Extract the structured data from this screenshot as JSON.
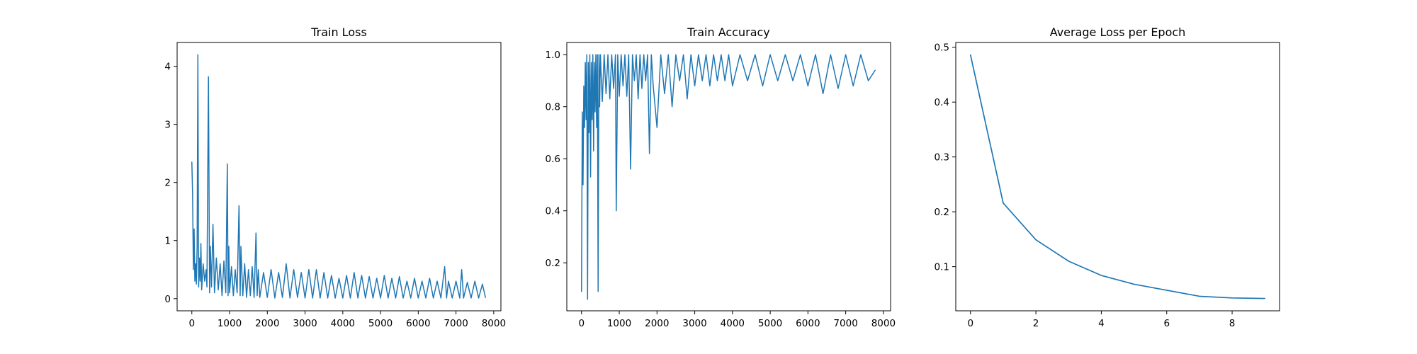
{
  "chart_data": [
    {
      "type": "line",
      "title": "Train Loss",
      "xlabel": "",
      "ylabel": "",
      "xlim": [
        -390,
        8190
      ],
      "ylim": [
        -0.21,
        4.41
      ],
      "xticks": [
        0,
        1000,
        2000,
        3000,
        4000,
        5000,
        6000,
        7000,
        8000
      ],
      "yticks": [
        0,
        1,
        2,
        3,
        4
      ],
      "grid": false,
      "series": [
        {
          "color": "#1f77b4",
          "x": [
            0,
            20,
            40,
            60,
            80,
            100,
            120,
            140,
            160,
            180,
            200,
            220,
            240,
            260,
            300,
            340,
            380,
            400,
            440,
            470,
            490,
            520,
            560,
            600,
            650,
            700,
            750,
            800,
            850,
            900,
            940,
            960,
            980,
            1000,
            1050,
            1100,
            1150,
            1200,
            1250,
            1280,
            1300,
            1350,
            1400,
            1450,
            1500,
            1550,
            1600,
            1650,
            1700,
            1730,
            1760,
            1800,
            1900,
            2000,
            2100,
            2200,
            2300,
            2400,
            2500,
            2600,
            2700,
            2800,
            2900,
            3000,
            3100,
            3200,
            3300,
            3400,
            3500,
            3600,
            3700,
            3800,
            3900,
            4000,
            4100,
            4200,
            4300,
            4400,
            4500,
            4600,
            4700,
            4800,
            4900,
            5000,
            5100,
            5200,
            5300,
            5400,
            5500,
            5600,
            5700,
            5800,
            5900,
            6000,
            6100,
            6200,
            6300,
            6400,
            6500,
            6600,
            6700,
            6750,
            6800,
            6900,
            7000,
            7100,
            7150,
            7200,
            7300,
            7400,
            7500,
            7600,
            7700,
            7780
          ],
          "values": [
            2.35,
            1.8,
            0.5,
            1.2,
            0.3,
            0.6,
            0.25,
            0.9,
            4.2,
            0.2,
            0.7,
            0.3,
            0.95,
            0.15,
            0.6,
            0.3,
            0.5,
            0.2,
            3.82,
            0.1,
            0.9,
            0.2,
            1.28,
            0.1,
            0.7,
            0.15,
            0.6,
            0.05,
            0.65,
            0.1,
            2.32,
            0.05,
            0.9,
            0.1,
            0.55,
            0.05,
            0.5,
            0.1,
            1.6,
            0.05,
            0.9,
            0.05,
            0.6,
            0.02,
            0.5,
            0.05,
            0.55,
            0.02,
            1.13,
            0.05,
            0.5,
            0.02,
            0.45,
            0.02,
            0.5,
            0.01,
            0.45,
            0.02,
            0.6,
            0.01,
            0.5,
            0.02,
            0.45,
            0.01,
            0.5,
            0.01,
            0.5,
            0.01,
            0.45,
            0.01,
            0.4,
            0.01,
            0.35,
            0.01,
            0.4,
            0.01,
            0.45,
            0.01,
            0.4,
            0.01,
            0.38,
            0.01,
            0.35,
            0.01,
            0.4,
            0.01,
            0.35,
            0.01,
            0.38,
            0.01,
            0.3,
            0.01,
            0.35,
            0.01,
            0.3,
            0.01,
            0.35,
            0.01,
            0.3,
            0.01,
            0.55,
            0.01,
            0.3,
            0.01,
            0.3,
            0.01,
            0.5,
            0.01,
            0.28,
            0.01,
            0.3,
            0.01,
            0.25,
            0.02
          ]
        }
      ]
    },
    {
      "type": "line",
      "title": "Train Accuracy",
      "xlabel": "",
      "ylabel": "",
      "xlim": [
        -390,
        8190
      ],
      "ylim": [
        0.0155,
        1.0469
      ],
      "xticks": [
        0,
        1000,
        2000,
        3000,
        4000,
        5000,
        6000,
        7000,
        8000
      ],
      "yticks": [
        0.2,
        0.4,
        0.6,
        0.8,
        1.0
      ],
      "yticklabels": [
        "0.2",
        "0.4",
        "0.6",
        "0.8",
        "1.0"
      ],
      "grid": false,
      "series": [
        {
          "color": "#1f77b4",
          "x": [
            0,
            20,
            40,
            60,
            80,
            100,
            120,
            140,
            160,
            180,
            200,
            220,
            240,
            260,
            280,
            300,
            320,
            340,
            360,
            380,
            400,
            420,
            440,
            460,
            480,
            500,
            550,
            600,
            650,
            700,
            750,
            800,
            850,
            900,
            920,
            960,
            1000,
            1050,
            1100,
            1150,
            1200,
            1250,
            1300,
            1350,
            1400,
            1450,
            1500,
            1550,
            1600,
            1650,
            1700,
            1750,
            1800,
            1850,
            1900,
            2000,
            2100,
            2200,
            2300,
            2400,
            2500,
            2600,
            2700,
            2800,
            2900,
            3000,
            3100,
            3200,
            3300,
            3400,
            3500,
            3600,
            3700,
            3800,
            3900,
            4000,
            4200,
            4400,
            4600,
            4800,
            5000,
            5200,
            5400,
            5600,
            5800,
            6000,
            6200,
            6400,
            6600,
            6800,
            7000,
            7200,
            7400,
            7600,
            7780
          ],
          "values": [
            0.09,
            0.78,
            0.5,
            0.88,
            0.72,
            0.97,
            0.75,
            1.0,
            0.06,
            0.97,
            0.7,
            1.0,
            0.53,
            0.97,
            0.75,
            1.0,
            0.63,
            0.97,
            0.78,
            1.0,
            0.72,
            1.0,
            0.09,
            1.0,
            0.8,
            1.0,
            0.82,
            1.0,
            0.85,
            1.0,
            0.83,
            1.0,
            0.87,
            1.0,
            0.4,
            1.0,
            0.84,
            1.0,
            0.88,
            1.0,
            0.84,
            1.0,
            0.56,
            1.0,
            0.9,
            1.0,
            0.83,
            1.0,
            0.87,
            1.0,
            0.9,
            1.0,
            0.62,
            1.0,
            0.88,
            0.72,
            1.0,
            0.85,
            1.0,
            0.8,
            1.0,
            0.9,
            1.0,
            0.83,
            1.0,
            0.88,
            1.0,
            0.9,
            1.0,
            0.88,
            1.0,
            0.9,
            1.0,
            0.9,
            1.0,
            0.88,
            1.0,
            0.9,
            1.0,
            0.88,
            1.0,
            0.9,
            1.0,
            0.9,
            1.0,
            0.88,
            1.0,
            0.85,
            1.0,
            0.87,
            1.0,
            0.88,
            1.0,
            0.9,
            0.94
          ]
        }
      ]
    },
    {
      "type": "line",
      "title": "Average Loss per Epoch",
      "xlabel": "",
      "ylabel": "",
      "xlim": [
        -0.45,
        9.45
      ],
      "ylim": [
        0.0195,
        0.5087
      ],
      "xticks": [
        0,
        2,
        4,
        6,
        8
      ],
      "yticks": [
        0.1,
        0.2,
        0.3,
        0.4,
        0.5
      ],
      "grid": false,
      "series": [
        {
          "color": "#1f77b4",
          "x": [
            0,
            1,
            2,
            3,
            4,
            5,
            6,
            7,
            8,
            9
          ],
          "values": [
            0.486,
            0.216,
            0.149,
            0.11,
            0.084,
            0.068,
            0.057,
            0.046,
            0.043,
            0.042
          ]
        }
      ]
    }
  ]
}
